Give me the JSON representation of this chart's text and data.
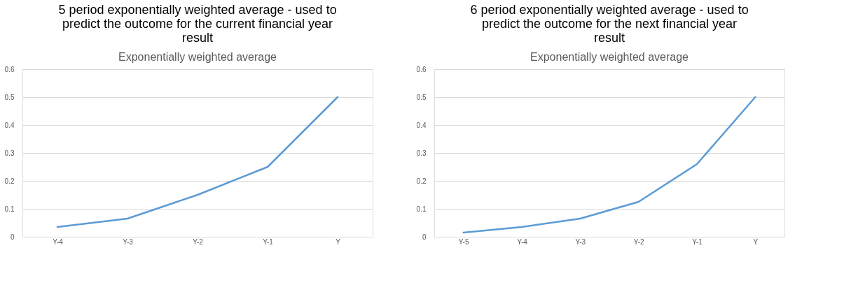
{
  "chart_data": [
    {
      "type": "line",
      "title": "5 period exponentially weighted average  - used to predict the outcome for the current financial year result",
      "subtitle": "Exponentially weighted average",
      "categories": [
        "Y-4",
        "Y-3",
        "Y-2",
        "Y-1",
        "Y"
      ],
      "series": [
        {
          "color": "#5b9bd5",
          "values": [
            0.035,
            0.065,
            0.15,
            0.25,
            0.5
          ]
        }
      ],
      "ylim": [
        0,
        0.6
      ],
      "yticks": [
        0,
        0.1,
        0.2,
        0.3,
        0.4,
        0.5,
        0.6
      ],
      "grid": "y"
    },
    {
      "type": "line",
      "title": "6 period exponentially weighted average  - used to predict the outcome for the next financial year result",
      "subtitle": "Exponentially weighted average",
      "categories": [
        "Y-5",
        "Y-4",
        "Y-3",
        "Y-2",
        "Y-1",
        "Y"
      ],
      "series": [
        {
          "color": "#5b9bd5",
          "values": [
            0.015,
            0.035,
            0.065,
            0.125,
            0.26,
            0.5
          ]
        }
      ],
      "ylim": [
        0,
        0.6
      ],
      "yticks": [
        0,
        0.1,
        0.2,
        0.3,
        0.4,
        0.5,
        0.6
      ],
      "grid": "y"
    }
  ]
}
